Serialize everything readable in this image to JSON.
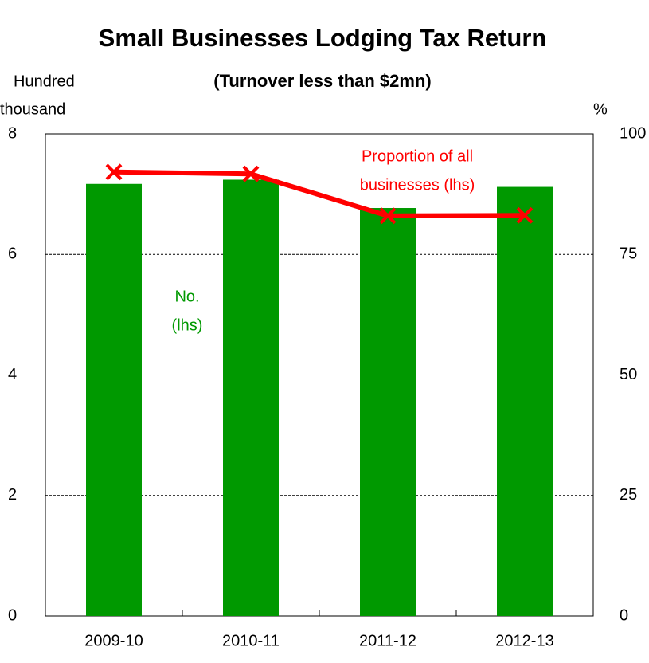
{
  "chart_data": {
    "type": "bar",
    "title": "Small Businesses Lodging Tax Return",
    "subtitle": "(Turnover less than $2mn)",
    "y_label": [
      "Hundred",
      "thousand"
    ],
    "y2_label": "%",
    "categories": [
      "2009-10",
      "2010-11",
      "2011-12",
      "2012-13"
    ],
    "series": [
      {
        "name": "No. (lhs)",
        "type": "bar",
        "color": "#009900",
        "values": [
          7.17,
          7.24,
          6.77,
          7.12
        ],
        "axis": "y"
      },
      {
        "name": "Proportion of all businesses (lhs)",
        "type": "line",
        "color": "#ff0000",
        "values": [
          92.1,
          91.7,
          83.0,
          83.1
        ],
        "axis": "y2"
      }
    ],
    "annotations": [
      {
        "lines": [
          "Proportion of all",
          "businesses (lhs)"
        ],
        "color": "#ff0000"
      },
      {
        "lines": [
          "No.",
          "(lhs)"
        ],
        "color": "#009900"
      }
    ],
    "ylim": [
      0,
      8
    ],
    "yticks": [
      0,
      2,
      4,
      6,
      8
    ],
    "y2lim": [
      0,
      100
    ],
    "y2ticks": [
      0,
      25,
      50,
      75,
      100
    ],
    "grid": true
  }
}
